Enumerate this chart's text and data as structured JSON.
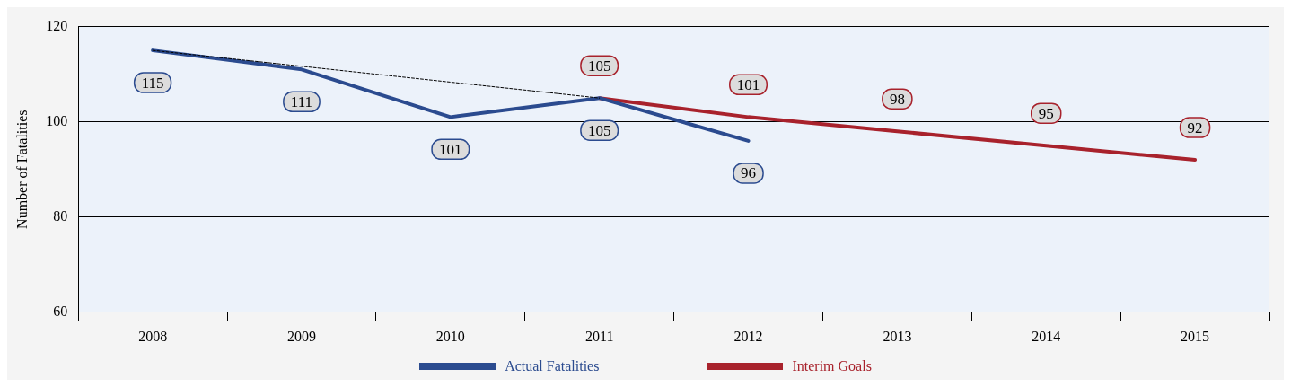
{
  "chart_data": {
    "type": "line",
    "ylabel": "Number of Fatalities",
    "categories": [
      "2008",
      "2009",
      "2010",
      "2011",
      "2012",
      "2013",
      "2014",
      "2015"
    ],
    "series": [
      {
        "name": "Actual Fatalities",
        "color": "#2b4b8f",
        "values": [
          115,
          111,
          101,
          105,
          96,
          null,
          null,
          null
        ],
        "value_labels": [
          "115",
          "111",
          "101",
          "105",
          "96",
          null,
          null,
          null
        ]
      },
      {
        "name": "Interim Goals",
        "color": "#a8222c",
        "values": [
          null,
          null,
          null,
          105,
          101,
          98,
          95,
          92
        ],
        "value_labels": [
          null,
          null,
          null,
          "105",
          "101",
          "98",
          "95",
          "92"
        ]
      },
      {
        "type": "line",
        "color": "#000000",
        "line_style": "dashed",
        "values": [
          115,
          null,
          null,
          105,
          null,
          null,
          null,
          null
        ]
      }
    ],
    "ylim": [
      60,
      120
    ],
    "yticks": [
      60,
      80,
      100,
      120
    ],
    "grid": "y",
    "legend": "bottom",
    "marker": "none",
    "line_style": "solid"
  }
}
